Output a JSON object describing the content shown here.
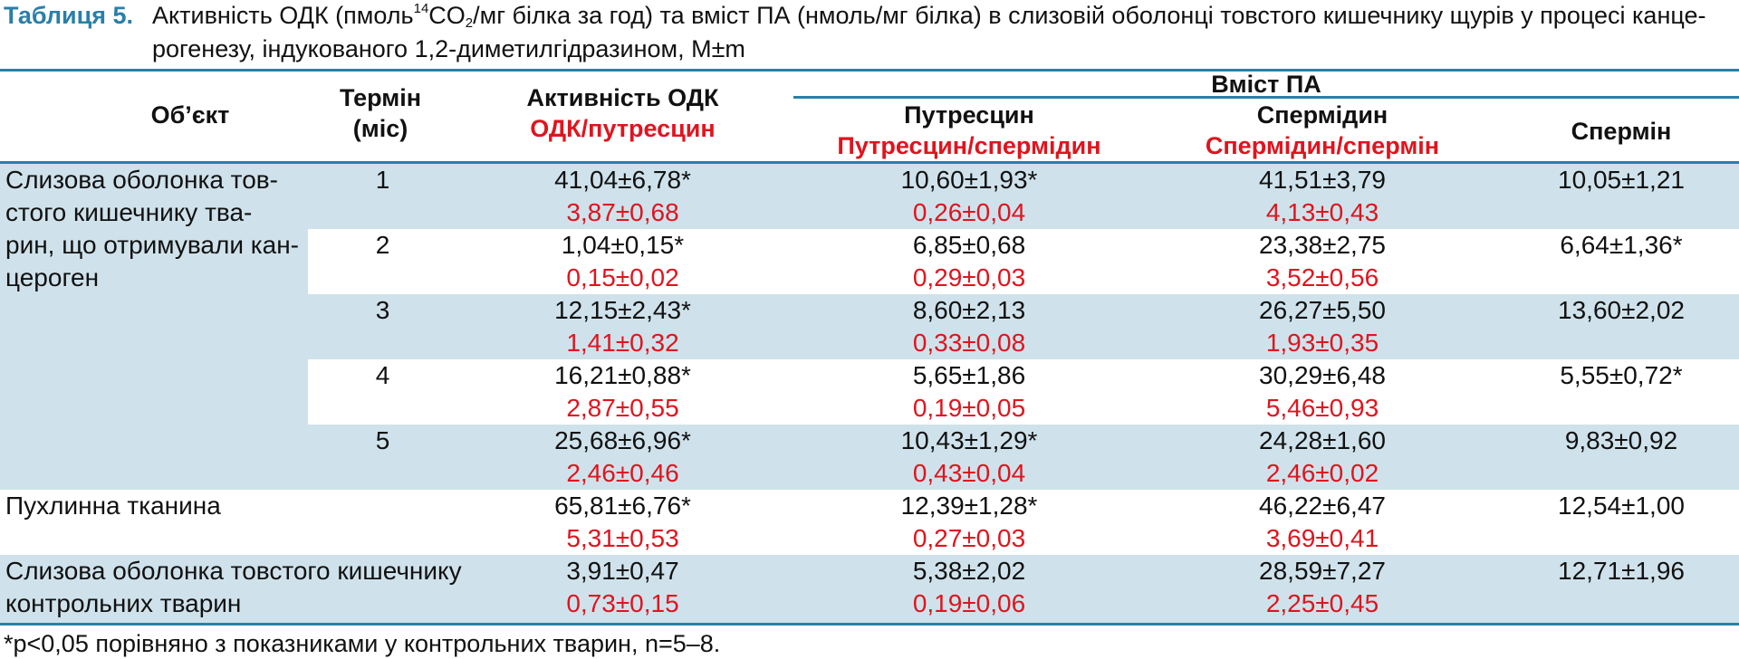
{
  "caption": {
    "label": "Таблиця 5.",
    "line1_a": "Активність ОДК (пмоль",
    "line1_sup": "14",
    "line1_b": "CO",
    "line1_sub": "2",
    "line1_c": "/мг білка за год) та вміст ПА (нмоль/мг білка) в слизовій оболонці товстого кишечнику щурів у процесі канце-",
    "line2": "рогенезу, індукованого 1,2-диметилгідразином, M±m"
  },
  "headers": {
    "object": "Об’єкт",
    "term_1": "Термін",
    "term_2": "(міс)",
    "odk_1": "Активність ОДК",
    "odk_2": "ОДК/путресцин",
    "group": "Вміст ПА",
    "putrescine_1": "Путресцин",
    "putrescine_2": "Путресцин/спермідин",
    "spermidine_1": "Спермідин",
    "spermidine_2": "Спермідин/спермін",
    "spermine": "Спермін"
  },
  "object_labels": {
    "carcinogen": [
      "Слизова оболонка тов-",
      "стого кишечнику тва-",
      "рин, що отримували кан-",
      "цероген"
    ],
    "tumor": [
      "Пухлинна тканина"
    ],
    "control": [
      "Слизова оболонка товстого кишечнику",
      "контрольних тварин"
    ]
  },
  "rows": [
    {
      "term": "1",
      "odk": "41,04±6,78*",
      "odk_ratio": "3,87±0,68",
      "put": "10,60±1,93*",
      "put_ratio": "0,26±0,04",
      "spd": "41,51±3,79",
      "spd_ratio": "4,13±0,43",
      "spm": "10,05±1,21"
    },
    {
      "term": "2",
      "odk": "1,04±0,15*",
      "odk_ratio": "0,15±0,02",
      "put": "6,85±0,68",
      "put_ratio": "0,29±0,03",
      "spd": "23,38±2,75",
      "spd_ratio": "3,52±0,56",
      "spm": "6,64±1,36*"
    },
    {
      "term": "3",
      "odk": "12,15±2,43*",
      "odk_ratio": "1,41±0,32",
      "put": "8,60±2,13",
      "put_ratio": "0,33±0,08",
      "spd": "26,27±5,50",
      "spd_ratio": "1,93±0,35",
      "spm": "13,60±2,02"
    },
    {
      "term": "4",
      "odk": "16,21±0,88*",
      "odk_ratio": "2,87±0,55",
      "put": "5,65±1,86",
      "put_ratio": "0,19±0,05",
      "spd": "30,29±6,48",
      "spd_ratio": "5,46±0,93",
      "spm": "5,55±0,72*"
    },
    {
      "term": "5",
      "odk": "25,68±6,96*",
      "odk_ratio": "2,46±0,46",
      "put": "10,43±1,29*",
      "put_ratio": "0,43±0,04",
      "spd": "24,28±1,60",
      "spd_ratio": "2,46±0,02",
      "spm": "9,83±0,92"
    },
    {
      "term": "",
      "odk": "65,81±6,76*",
      "odk_ratio": "5,31±0,53",
      "put": "12,39±1,28*",
      "put_ratio": "0,27±0,03",
      "spd": "46,22±6,47",
      "spd_ratio": "3,69±0,41",
      "spm": "12,54±1,00"
    },
    {
      "term": "",
      "odk": "3,91±0,47",
      "odk_ratio": "0,73±0,15",
      "put": "5,38±2,02",
      "put_ratio": "0,19±0,06",
      "spd": "28,59±7,27",
      "spd_ratio": "2,25±0,45",
      "spm": "12,71±1,96"
    }
  ],
  "footnote": "*p<0,05 порівняно з показниками у контрольних тварин, n=5–8.",
  "colors": {
    "accent": "#2a7fa8",
    "band": "#cfe2eb",
    "red": "#e0141e"
  }
}
